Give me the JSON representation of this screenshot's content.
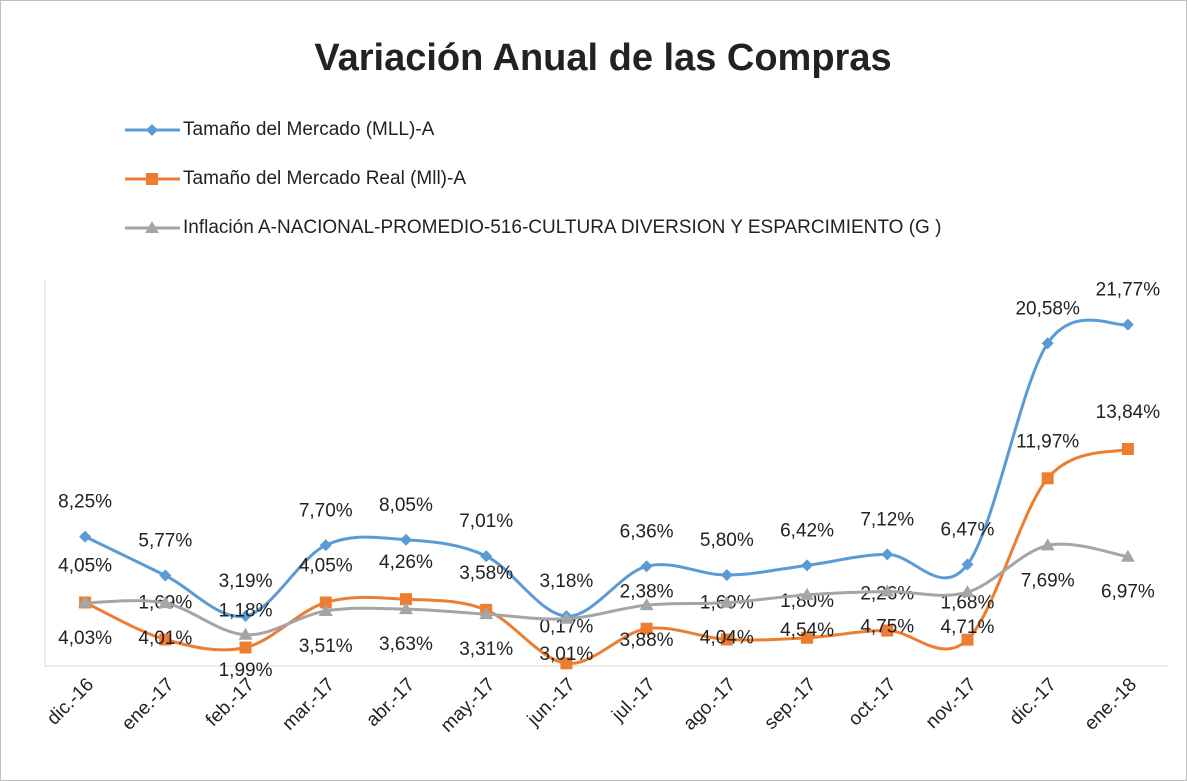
{
  "chart_data": {
    "type": "line",
    "title": "Variación Anual de las Compras",
    "categories": [
      "dic.-16",
      "ene.-17",
      "feb.-17",
      "mar.-17",
      "abr.-17",
      "may.-17",
      "jun.-17",
      "jul.-17",
      "ago.-17",
      "sep.-17",
      "oct.-17",
      "nov.-17",
      "dic.-17",
      "ene.-18"
    ],
    "ylim": [
      0,
      25
    ],
    "smooth": true,
    "legend": "top",
    "series": [
      {
        "name": "Tamaño del Mercado (MLL)-A",
        "color": "#5b9bd5",
        "marker": "diamond",
        "values": [
          8.25,
          5.77,
          3.19,
          7.7,
          8.05,
          7.01,
          3.18,
          6.36,
          5.8,
          6.42,
          7.12,
          6.47,
          20.58,
          21.77
        ],
        "value_labels": [
          "8,25%",
          "5,77%",
          "3,19%",
          "7,70%",
          "8,05%",
          "7,01%",
          "3,18%",
          "6,36%",
          "5,80%",
          "6,42%",
          "7,12%",
          "6,47%",
          "20,58%",
          "21,77%"
        ]
      },
      {
        "name": "Tamaño del Mercado Real (Mll)-A",
        "color": "#ed7d31",
        "marker": "square",
        "values": [
          4.05,
          1.69,
          1.18,
          4.05,
          4.26,
          3.58,
          0.17,
          2.38,
          1.69,
          1.8,
          2.26,
          1.68,
          11.97,
          13.84
        ],
        "value_labels": [
          "4,05%",
          "1,69%",
          "1,18%",
          "4,05%",
          "4,26%",
          "3,58%",
          "0,17%",
          "2,38%",
          "1,69%",
          "1,80%",
          "2,26%",
          "1,68%",
          "11,97%",
          "13,84%"
        ]
      },
      {
        "name": "Inflación A-NACIONAL-PROMEDIO-516-CULTURA DIVERSION Y ESPARCIMIENTO (G )",
        "color": "#a5a5a5",
        "marker": "triangle",
        "values": [
          4.03,
          4.01,
          1.99,
          3.51,
          3.63,
          3.31,
          3.01,
          3.88,
          4.04,
          4.54,
          4.75,
          4.71,
          7.69,
          6.97
        ],
        "value_labels": [
          "4,03%",
          "4,01%",
          "1,99%",
          "3,51%",
          "3,63%",
          "3,31%",
          "3,01%",
          "3,88%",
          "4,04%",
          "4,54%",
          "4,75%",
          "4,71%",
          "7,69%",
          "6,97%"
        ]
      }
    ]
  }
}
